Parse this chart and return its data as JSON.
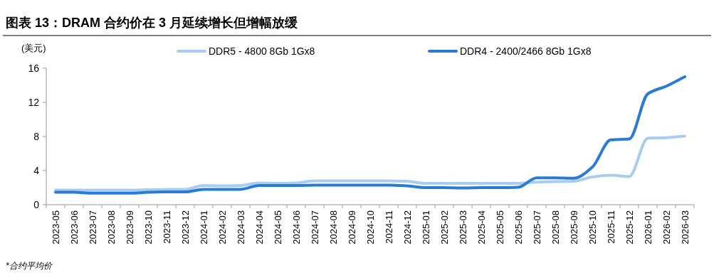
{
  "chart_data": {
    "type": "line",
    "title": "图表 13：DRAM 合约价在 3 月延续增长但增幅放缓",
    "ylabel": "(美元)",
    "categories": [
      "2023-05",
      "2023-06",
      "2023-07",
      "2023-08",
      "2023-09",
      "2023-10",
      "2023-11",
      "2023-12",
      "2024-01",
      "2024-02",
      "2024-03",
      "2024-04",
      "2024-05",
      "2024-06",
      "2024-07",
      "2024-08",
      "2024-09",
      "2024-10",
      "2024-11",
      "2024-12",
      "2025-01",
      "2025-02",
      "2025-03",
      "2025-04",
      "2025-05",
      "2025-06",
      "2025-07",
      "2025-08",
      "2025-09",
      "2025-10",
      "2025-11",
      "2025-12",
      "2026-01",
      "2026-02",
      "2026-03"
    ],
    "series": [
      {
        "name": "DDR5 - 4800 8Gb 1Gx8",
        "color": "#a9cdf0",
        "values": [
          1.7,
          1.7,
          1.7,
          1.7,
          1.7,
          1.75,
          1.8,
          1.8,
          2.25,
          2.2,
          2.25,
          2.55,
          2.5,
          2.55,
          2.8,
          2.8,
          2.8,
          2.8,
          2.8,
          2.75,
          2.5,
          2.5,
          2.5,
          2.5,
          2.5,
          2.5,
          2.65,
          2.7,
          2.75,
          3.25,
          3.45,
          3.3,
          7.8,
          7.85,
          8.05
        ]
      },
      {
        "name": "DDR4 - 2400/2466 8Gb 1Gx8",
        "color": "#2a7bd6",
        "values": [
          1.45,
          1.45,
          1.35,
          1.35,
          1.35,
          1.45,
          1.5,
          1.5,
          1.8,
          1.8,
          1.8,
          2.25,
          2.25,
          2.25,
          2.3,
          2.3,
          2.3,
          2.3,
          2.3,
          2.2,
          2.0,
          2.0,
          1.95,
          2.0,
          2.0,
          2.05,
          3.15,
          3.15,
          3.1,
          4.4,
          7.6,
          7.7,
          13.0,
          13.9,
          15.0
        ]
      }
    ],
    "ylim": [
      0,
      16
    ],
    "yticks": [
      0,
      4,
      8,
      12,
      16
    ],
    "grid": false,
    "legend": "top",
    "annotations": [
      "*合约平均价"
    ]
  }
}
